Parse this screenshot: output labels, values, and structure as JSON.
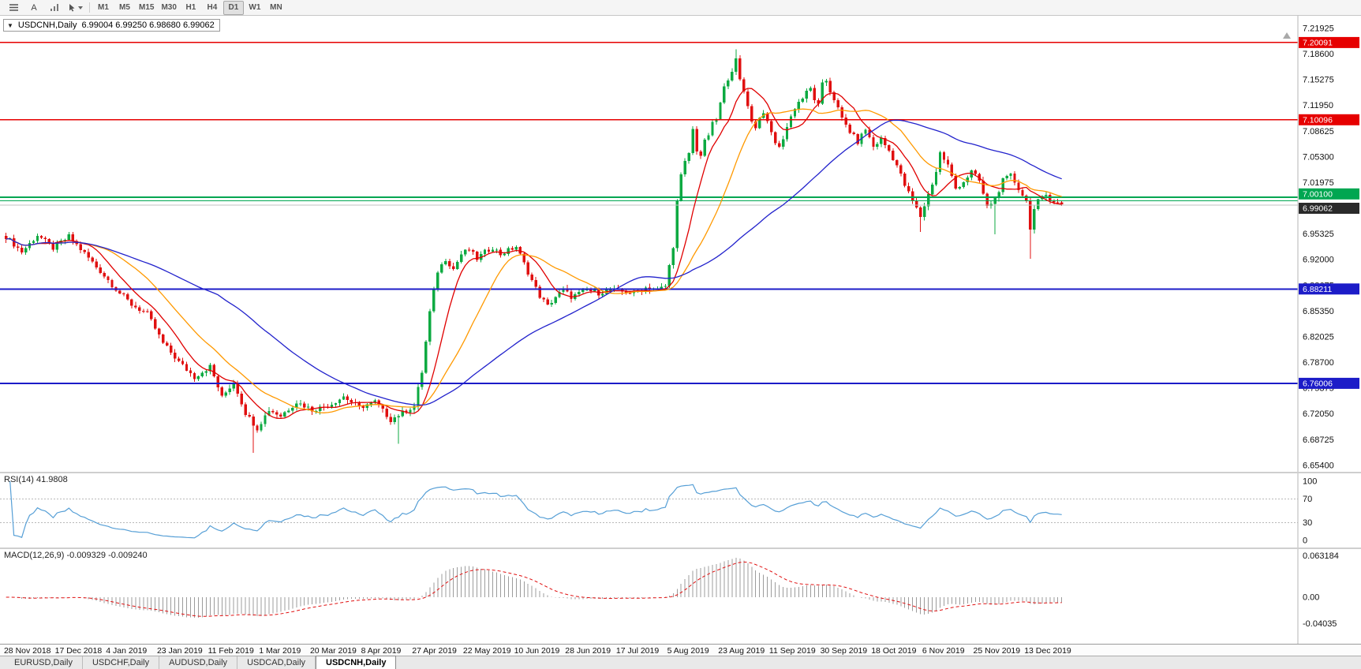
{
  "toolbar": {
    "text_tool_label": "A",
    "timeframes": [
      "M1",
      "M5",
      "M15",
      "M30",
      "H1",
      "H4",
      "D1",
      "W1",
      "MN"
    ],
    "active_timeframe": "D1"
  },
  "chart": {
    "title_marker": "▼",
    "title": {
      "symbol": "USDCNH,Daily",
      "open": "6.99004",
      "high": "6.99250",
      "low": "6.98680",
      "close": "6.99062",
      "ohlc": "6.99004 6.99250 6.98680 6.99062"
    },
    "price_axis": {
      "labels": [
        "7.21925",
        "7.18600",
        "7.15275",
        "7.11950",
        "7.08625",
        "7.05300",
        "7.01975",
        "6.98650",
        "6.95325",
        "6.92000",
        "6.88675",
        "6.85350",
        "6.82025",
        "6.78700",
        "6.75375",
        "6.72050",
        "6.68725",
        "6.65400"
      ]
    },
    "hlines": [
      {
        "value": 7.20091,
        "label": "7.20091",
        "color": "#e60000",
        "width": 1.4,
        "badge_bg": "#e60000",
        "badge_text": "#ffffff"
      },
      {
        "value": 7.10096,
        "label": "7.10096",
        "color": "#e60000",
        "width": 1.4,
        "badge_bg": "#e60000",
        "badge_text": "#ffffff"
      },
      {
        "value": 7.001,
        "label": "7.00100",
        "color": "#00a651",
        "width": 2,
        "badge_bg": "#00a651",
        "badge_text": "#ffffff",
        "badge_dy": -4
      },
      {
        "value": 6.9962,
        "label": null,
        "color": "#00a651",
        "width": 1.2
      },
      {
        "value": 6.99062,
        "label": "6.99062",
        "color": "#c0c0c0",
        "width": 1,
        "badge_bg": "#2a2a2a",
        "badge_text": "#ffffff",
        "badge_dy": 4
      },
      {
        "value": 6.88211,
        "label": "6.88211",
        "color": "#1c1cc8",
        "width": 2,
        "badge_bg": "#1c1cc8",
        "badge_text": "#ffffff"
      },
      {
        "value": 6.76006,
        "label": "6.76006",
        "color": "#1c1cc8",
        "width": 2,
        "badge_bg": "#1c1cc8",
        "badge_text": "#ffffff"
      }
    ]
  },
  "chart_data": {
    "type": "candlestick",
    "symbol": "USDCNH",
    "timeframe": "Daily",
    "num_bars": 270,
    "up_color": "#0caa41",
    "down_color": "#e01010",
    "price_range_visible": [
      6.6457,
      7.2355
    ],
    "close_waypoints": [
      [
        0,
        6.95
      ],
      [
        4,
        6.93
      ],
      [
        8,
        6.952
      ],
      [
        12,
        6.935
      ],
      [
        16,
        6.95
      ],
      [
        20,
        6.928
      ],
      [
        24,
        6.905
      ],
      [
        28,
        6.882
      ],
      [
        32,
        6.862
      ],
      [
        36,
        6.85
      ],
      [
        40,
        6.812
      ],
      [
        44,
        6.788
      ],
      [
        48,
        6.768
      ],
      [
        52,
        6.782
      ],
      [
        55,
        6.742
      ],
      [
        58,
        6.762
      ],
      [
        61,
        6.722
      ],
      [
        64,
        6.702
      ],
      [
        67,
        6.726
      ],
      [
        70,
        6.718
      ],
      [
        74,
        6.736
      ],
      [
        78,
        6.726
      ],
      [
        82,
        6.731
      ],
      [
        86,
        6.743
      ],
      [
        90,
        6.729
      ],
      [
        94,
        6.736
      ],
      [
        98,
        6.713
      ],
      [
        101,
        6.722
      ],
      [
        104,
        6.731
      ],
      [
        106,
        6.775
      ],
      [
        108,
        6.852
      ],
      [
        110,
        6.905
      ],
      [
        112,
        6.921
      ],
      [
        114,
        6.908
      ],
      [
        116,
        6.927
      ],
      [
        118,
        6.933
      ],
      [
        120,
        6.921
      ],
      [
        122,
        6.93
      ],
      [
        124,
        6.936
      ],
      [
        126,
        6.927
      ],
      [
        128,
        6.932
      ],
      [
        130,
        6.937
      ],
      [
        132,
        6.915
      ],
      [
        134,
        6.893
      ],
      [
        136,
        6.873
      ],
      [
        138,
        6.86
      ],
      [
        140,
        6.872
      ],
      [
        142,
        6.881
      ],
      [
        144,
        6.872
      ],
      [
        146,
        6.876
      ],
      [
        148,
        6.881
      ],
      [
        151,
        6.877
      ],
      [
        154,
        6.881
      ],
      [
        157,
        6.879
      ],
      [
        160,
        6.877
      ],
      [
        163,
        6.884
      ],
      [
        166,
        6.881
      ],
      [
        168,
        6.886
      ],
      [
        170,
        6.938
      ],
      [
        171,
        6.995
      ],
      [
        172,
        7.028
      ],
      [
        173,
        7.046
      ],
      [
        174,
        7.058
      ],
      [
        175,
        7.088
      ],
      [
        176,
        7.062
      ],
      [
        177,
        7.055
      ],
      [
        178,
        7.072
      ],
      [
        179,
        7.082
      ],
      [
        180,
        7.095
      ],
      [
        181,
        7.102
      ],
      [
        182,
        7.122
      ],
      [
        183,
        7.142
      ],
      [
        184,
        7.155
      ],
      [
        185,
        7.166
      ],
      [
        186,
        7.178
      ],
      [
        187,
        7.152
      ],
      [
        188,
        7.138
      ],
      [
        189,
        7.121
      ],
      [
        190,
        7.098
      ],
      [
        191,
        7.092
      ],
      [
        192,
        7.103
      ],
      [
        193,
        7.112
      ],
      [
        194,
        7.096
      ],
      [
        195,
        7.084
      ],
      [
        196,
        7.072
      ],
      [
        197,
        7.064
      ],
      [
        198,
        7.078
      ],
      [
        199,
        7.092
      ],
      [
        200,
        7.105
      ],
      [
        201,
        7.117
      ],
      [
        202,
        7.124
      ],
      [
        203,
        7.129
      ],
      [
        204,
        7.136
      ],
      [
        205,
        7.141
      ],
      [
        206,
        7.128
      ],
      [
        207,
        7.119
      ],
      [
        208,
        7.146
      ],
      [
        209,
        7.152
      ],
      [
        210,
        7.138
      ],
      [
        211,
        7.128
      ],
      [
        213,
        7.102
      ],
      [
        215,
        7.086
      ],
      [
        217,
        7.072
      ],
      [
        219,
        7.089
      ],
      [
        221,
        7.066
      ],
      [
        223,
        7.076
      ],
      [
        225,
        7.061
      ],
      [
        227,
        7.042
      ],
      [
        229,
        7.016
      ],
      [
        231,
        6.996
      ],
      [
        233,
        6.976
      ],
      [
        235,
        7.004
      ],
      [
        237,
        7.034
      ],
      [
        238,
        7.058
      ],
      [
        240,
        7.042
      ],
      [
        242,
        7.012
      ],
      [
        244,
        7.021
      ],
      [
        246,
        7.034
      ],
      [
        248,
        7.022
      ],
      [
        250,
        6.988
      ],
      [
        252,
        6.999
      ],
      [
        254,
        7.022
      ],
      [
        256,
        7.029
      ],
      [
        258,
        7.012
      ],
      [
        260,
        6.996
      ],
      [
        261,
        6.962
      ],
      [
        262,
        6.985
      ],
      [
        263,
        6.995
      ],
      [
        265,
        7.004
      ],
      [
        267,
        6.996
      ],
      [
        269,
        6.991
      ]
    ],
    "spikes": [
      {
        "i": 63,
        "low": 6.67
      },
      {
        "i": 100,
        "low": 6.682
      },
      {
        "i": 186,
        "high": 7.192
      },
      {
        "i": 233,
        "low": 6.956
      },
      {
        "i": 252,
        "low": 6.953
      },
      {
        "i": 261,
        "low": 6.921
      }
    ],
    "moving_averages": [
      {
        "period": 9,
        "color": "#e00000"
      },
      {
        "period": 21,
        "color": "#ff9900"
      },
      {
        "period": 55,
        "color": "#2222cc"
      }
    ],
    "x_labels": [
      "28 Nov 2018",
      "17 Dec 2018",
      "4 Jan 2019",
      "23 Jan 2019",
      "11 Feb 2019",
      "1 Mar 2019",
      "20 Mar 2019",
      "8 Apr 2019",
      "27 Apr 2019",
      "22 May 2019",
      "10 Jun 2019",
      "28 Jun 2019",
      "17 Jul 2019",
      "5 Aug 2019",
      "23 Aug 2019",
      "11 Sep 2019",
      "30 Sep 2019",
      "18 Oct 2019",
      "6 Nov 2019",
      "25 Nov 2019",
      "13 Dec 2019"
    ],
    "bars_per_label": 13
  },
  "rsi": {
    "label": "RSI(14) 41.9808",
    "line_color": "#569fd6",
    "levels": [
      70,
      30
    ],
    "axis_labels": [
      "100",
      "70",
      "30",
      "0"
    ]
  },
  "macd": {
    "label": "MACD(12,26,9) -0.009329 -0.009240",
    "histogram_color": "#9c9c9c",
    "signal_color": "#e01010",
    "axis_labels": [
      {
        "text": "0.063184",
        "value": 0.063184
      },
      {
        "text": "0.00",
        "value": 0
      },
      {
        "text": "-0.04035",
        "value": -0.04035
      }
    ]
  },
  "tabs": {
    "items": [
      {
        "label": "EURUSD,Daily",
        "active": false
      },
      {
        "label": "USDCHF,Daily",
        "active": false
      },
      {
        "label": "AUDUSD,Daily",
        "active": false
      },
      {
        "label": "USDCAD,Daily",
        "active": false
      },
      {
        "label": "USDCNH,Daily",
        "active": true
      }
    ]
  }
}
